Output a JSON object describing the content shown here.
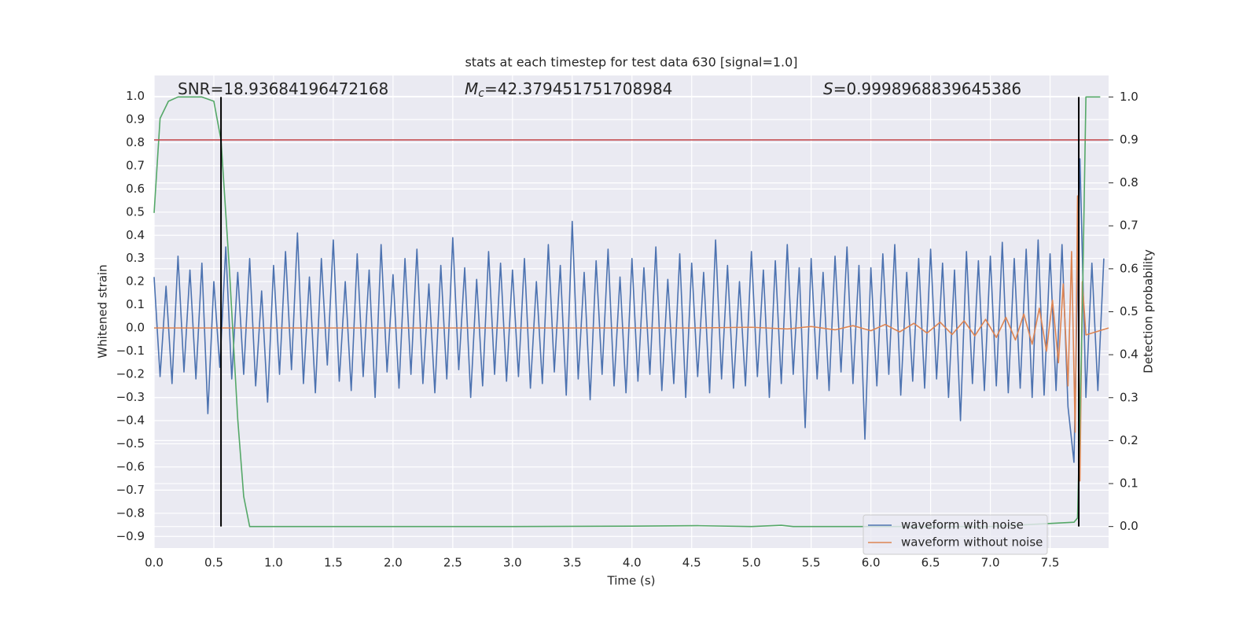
{
  "chart_data": {
    "type": "line",
    "title": "stats at each timestep for test data 630 [signal=1.0]",
    "xlabel": "Time (s)",
    "ylabel": "Whitened strain",
    "y2label": "Detection probability",
    "annotations": [
      {
        "symbol": "SNR",
        "text": "=18.93684196472168"
      },
      {
        "symbol": "M",
        "subscript": "c",
        "text": "=42.379451751708984"
      },
      {
        "symbol": "S",
        "text": "=0.9998968839645386"
      }
    ],
    "xlim": [
      0,
      7.99
    ],
    "ylim": [
      -0.95,
      1.09
    ],
    "y2lim": [
      -0.05,
      1.05
    ],
    "xticks": [
      {
        "value": 0,
        "label": "0.0"
      },
      0.5,
      {
        "value": 1,
        "label": "1.0"
      },
      1.5,
      {
        "value": 2,
        "label": "2.0"
      },
      2.5,
      {
        "value": 3,
        "label": "3.0"
      },
      3.5,
      {
        "value": 4,
        "label": "4.0"
      },
      4.5,
      {
        "value": 5,
        "label": "5.0"
      },
      5.5,
      {
        "value": 6,
        "label": "6.0"
      },
      6.5,
      {
        "value": 7,
        "label": "7.0"
      },
      7.5
    ],
    "yticks": [
      {
        "value": -0.9,
        "label": "−0.9"
      },
      {
        "value": -0.8,
        "label": "−0.8"
      },
      {
        "value": -0.7,
        "label": "−0.7"
      },
      {
        "value": -0.6,
        "label": "−0.6"
      },
      {
        "value": -0.5,
        "label": "−0.5"
      },
      {
        "value": -0.4,
        "label": "−0.4"
      },
      {
        "value": -0.3,
        "label": "−0.3"
      },
      {
        "value": -0.2,
        "label": "−0.2"
      },
      {
        "value": -0.1,
        "label": "−0.1"
      },
      {
        "value": 0,
        "label": "0.0"
      },
      0.1,
      0.2,
      0.3,
      0.4,
      0.5,
      0.6,
      0.7,
      0.8,
      0.9,
      {
        "value": 1,
        "label": "1.0"
      }
    ],
    "y2ticks": [
      {
        "value": 0,
        "label": "0.0"
      },
      0.1,
      0.2,
      0.3,
      0.4,
      0.5,
      0.6,
      0.7,
      0.8,
      0.9,
      {
        "value": 1,
        "label": "1.0"
      }
    ],
    "grid": true,
    "legend": "lower right",
    "series": [
      {
        "name": "waveform with noise",
        "color": "#4c72b0",
        "x": [
          0,
          0.05,
          0.1,
          0.15,
          0.2,
          0.25,
          0.3,
          0.35,
          0.4,
          0.45,
          0.5,
          0.55,
          0.6,
          0.65,
          0.7,
          0.75,
          0.8,
          0.85,
          0.9,
          0.95,
          1,
          1.05,
          1.1,
          1.15,
          1.2,
          1.25,
          1.3,
          1.35,
          1.4,
          1.45,
          1.5,
          1.55,
          1.6,
          1.65,
          1.7,
          1.75,
          1.8,
          1.85,
          1.9,
          1.95,
          2,
          2.05,
          2.1,
          2.15,
          2.2,
          2.25,
          2.3,
          2.35,
          2.4,
          2.45,
          2.5,
          2.55,
          2.6,
          2.65,
          2.7,
          2.75,
          2.8,
          2.85,
          2.9,
          2.95,
          3,
          3.05,
          3.1,
          3.15,
          3.2,
          3.25,
          3.3,
          3.35,
          3.4,
          3.45,
          3.5,
          3.55,
          3.6,
          3.65,
          3.7,
          3.75,
          3.8,
          3.85,
          3.9,
          3.95,
          4,
          4.05,
          4.1,
          4.15,
          4.2,
          4.25,
          4.3,
          4.35,
          4.4,
          4.45,
          4.5,
          4.55,
          4.6,
          4.65,
          4.7,
          4.75,
          4.8,
          4.85,
          4.9,
          4.95,
          5,
          5.05,
          5.1,
          5.15,
          5.2,
          5.25,
          5.3,
          5.35,
          5.4,
          5.45,
          5.5,
          5.55,
          5.6,
          5.65,
          5.7,
          5.75,
          5.8,
          5.85,
          5.9,
          5.95,
          6,
          6.05,
          6.1,
          6.15,
          6.2,
          6.25,
          6.3,
          6.35,
          6.4,
          6.45,
          6.5,
          6.55,
          6.6,
          6.65,
          6.7,
          6.75,
          6.8,
          6.85,
          6.9,
          6.95,
          7,
          7.05,
          7.1,
          7.15,
          7.2,
          7.25,
          7.3,
          7.35,
          7.4,
          7.45,
          7.5,
          7.55,
          7.6,
          7.65,
          7.7,
          7.75,
          7.8,
          7.85,
          7.9,
          7.95
        ],
        "values": [
          0.22,
          -0.21,
          0.18,
          -0.24,
          0.31,
          -0.19,
          0.25,
          -0.22,
          0.28,
          -0.37,
          0.2,
          -0.17,
          0.35,
          -0.22,
          0.24,
          -0.2,
          0.3,
          -0.25,
          0.16,
          -0.32,
          0.27,
          -0.2,
          0.33,
          -0.18,
          0.41,
          -0.24,
          0.22,
          -0.28,
          0.3,
          -0.16,
          0.38,
          -0.23,
          0.2,
          -0.27,
          0.32,
          -0.21,
          0.25,
          -0.3,
          0.36,
          -0.19,
          0.23,
          -0.26,
          0.3,
          -0.2,
          0.34,
          -0.24,
          0.19,
          -0.28,
          0.27,
          -0.22,
          0.39,
          -0.18,
          0.26,
          -0.3,
          0.21,
          -0.25,
          0.33,
          -0.2,
          0.28,
          -0.23,
          0.25,
          -0.21,
          0.3,
          -0.26,
          0.2,
          -0.24,
          0.36,
          -0.19,
          0.27,
          -0.29,
          0.46,
          -0.22,
          0.24,
          -0.31,
          0.29,
          -0.2,
          0.34,
          -0.25,
          0.22,
          -0.28,
          0.3,
          -0.23,
          0.26,
          -0.2,
          0.35,
          -0.27,
          0.21,
          -0.24,
          0.32,
          -0.3,
          0.28,
          -0.21,
          0.24,
          -0.28,
          0.38,
          -0.22,
          0.27,
          -0.26,
          0.2,
          -0.25,
          0.33,
          -0.21,
          0.25,
          -0.3,
          0.29,
          -0.24,
          0.36,
          -0.2,
          0.26,
          -0.43,
          0.3,
          -0.22,
          0.24,
          -0.27,
          0.31,
          -0.19,
          0.35,
          -0.24,
          0.27,
          -0.48,
          0.26,
          -0.25,
          0.32,
          -0.2,
          0.36,
          -0.29,
          0.24,
          -0.23,
          0.3,
          -0.26,
          0.34,
          -0.22,
          0.28,
          -0.3,
          0.25,
          -0.4,
          0.33,
          -0.24,
          0.29,
          -0.27,
          0.31,
          -0.25,
          0.37,
          -0.28,
          0.3,
          -0.26,
          0.34,
          -0.3,
          0.38,
          -0.29,
          0.32,
          -0.27,
          0.36,
          -0.34,
          -0.58,
          0.73,
          -0.3,
          0.28,
          -0.27,
          0.3
        ]
      },
      {
        "name": "waveform without noise",
        "color": "#dd8452",
        "x": [
          0,
          4.5,
          5.0,
          5.3,
          5.5,
          5.7,
          5.85,
          6.0,
          6.12,
          6.24,
          6.36,
          6.47,
          6.58,
          6.68,
          6.78,
          6.87,
          6.96,
          7.05,
          7.13,
          7.21,
          7.28,
          7.35,
          7.41,
          7.47,
          7.52,
          7.57,
          7.61,
          7.65,
          7.68,
          7.71,
          7.73,
          7.75,
          7.77,
          7.8,
          7.99
        ],
        "values": [
          0,
          0,
          0.003,
          -0.004,
          0.006,
          -0.008,
          0.01,
          -0.012,
          0.015,
          -0.017,
          0.02,
          -0.022,
          0.025,
          -0.028,
          0.031,
          -0.034,
          0.037,
          -0.041,
          0.046,
          -0.052,
          0.06,
          -0.07,
          0.085,
          -0.1,
          0.12,
          -0.15,
          0.19,
          -0.25,
          0.33,
          -0.45,
          0.57,
          -0.66,
          0.2,
          -0.03,
          0
        ]
      },
      {
        "color": "#55a868",
        "axis": "y2",
        "x": [
          0,
          0.05,
          0.12,
          0.2,
          0.3,
          0.4,
          0.5,
          0.56,
          0.63,
          0.7,
          0.75,
          0.8,
          0.87,
          2.0,
          3.0,
          4.0,
          4.55,
          5.0,
          5.25,
          5.35,
          6.0,
          7.0,
          7.7,
          7.73,
          7.77,
          7.8,
          7.85,
          7.92
        ],
        "values": [
          0.73,
          0.95,
          0.99,
          1.0,
          1.0,
          1.0,
          0.99,
          0.9,
          0.6,
          0.25,
          0.07,
          0.0,
          0.0,
          0.0,
          0.0,
          0.001,
          0.002,
          0.0,
          0.003,
          0.0,
          0.0,
          0.0,
          0.01,
          0.02,
          0.5,
          1.0,
          1.0,
          1.0
        ]
      }
    ],
    "hlines": [
      {
        "y": 0.9,
        "axis": "y2",
        "color": "#c44e52"
      }
    ],
    "vlines": [
      {
        "x": 0.56,
        "ymin": 0,
        "ymax": 1,
        "axis": "y2",
        "color": "#000000"
      },
      {
        "x": 7.74,
        "ymin": 0,
        "ymax": 1,
        "axis": "y2",
        "color": "#000000"
      }
    ]
  }
}
